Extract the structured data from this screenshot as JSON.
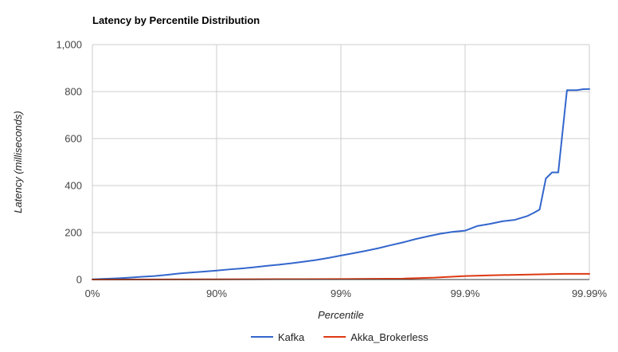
{
  "chart_data": {
    "type": "line",
    "title": "Latency by Percentile Distribution",
    "xlabel": "Percentile",
    "ylabel": "Latency (milliseconds)",
    "x_ticks": [
      "0%",
      "90%",
      "99%",
      "99.9%",
      "99.99%"
    ],
    "y_ticks": [
      "0",
      "200",
      "400",
      "600",
      "800",
      "1,000"
    ],
    "ylim": [
      0,
      1000
    ],
    "grid": true,
    "legend_position": "bottom",
    "x_note": "x values are positions along the nines-scale percentile axis: 0 = 0%, 1 = 90%, 2 = 99%, 3 = 99.9%, 4 = 99.99%",
    "series": [
      {
        "name": "Kafka",
        "color": "#3366cc",
        "points": [
          [
            0.0,
            1
          ],
          [
            0.1,
            3
          ],
          [
            0.2,
            5
          ],
          [
            0.3,
            8
          ],
          [
            0.4,
            12
          ],
          [
            0.5,
            15
          ],
          [
            0.6,
            20
          ],
          [
            0.7,
            26
          ],
          [
            0.8,
            30
          ],
          [
            0.9,
            34
          ],
          [
            1.0,
            38
          ],
          [
            1.1,
            43
          ],
          [
            1.2,
            47
          ],
          [
            1.3,
            52
          ],
          [
            1.4,
            58
          ],
          [
            1.5,
            63
          ],
          [
            1.6,
            69
          ],
          [
            1.7,
            76
          ],
          [
            1.8,
            83
          ],
          [
            1.9,
            92
          ],
          [
            2.0,
            102
          ],
          [
            2.1,
            112
          ],
          [
            2.2,
            122
          ],
          [
            2.3,
            133
          ],
          [
            2.4,
            146
          ],
          [
            2.5,
            158
          ],
          [
            2.6,
            172
          ],
          [
            2.7,
            184
          ],
          [
            2.8,
            195
          ],
          [
            2.9,
            203
          ],
          [
            3.0,
            208
          ],
          [
            3.05,
            218
          ],
          [
            3.1,
            228
          ],
          [
            3.2,
            237
          ],
          [
            3.3,
            248
          ],
          [
            3.4,
            254
          ],
          [
            3.45,
            262
          ],
          [
            3.5,
            270
          ],
          [
            3.55,
            283
          ],
          [
            3.6,
            298
          ],
          [
            3.65,
            430
          ],
          [
            3.7,
            456
          ],
          [
            3.75,
            456
          ],
          [
            3.82,
            806
          ],
          [
            3.9,
            806
          ],
          [
            3.95,
            810
          ],
          [
            4.0,
            811
          ]
        ]
      },
      {
        "name": "Akka_Brokerless",
        "color": "#dc3912",
        "points": [
          [
            0.0,
            0
          ],
          [
            0.5,
            0.5
          ],
          [
            1.0,
            1
          ],
          [
            1.5,
            1.5
          ],
          [
            2.0,
            2
          ],
          [
            2.5,
            4
          ],
          [
            2.75,
            8
          ],
          [
            3.0,
            15
          ],
          [
            3.2,
            18
          ],
          [
            3.4,
            20
          ],
          [
            3.6,
            22
          ],
          [
            3.8,
            24
          ],
          [
            4.0,
            24
          ]
        ]
      }
    ]
  }
}
